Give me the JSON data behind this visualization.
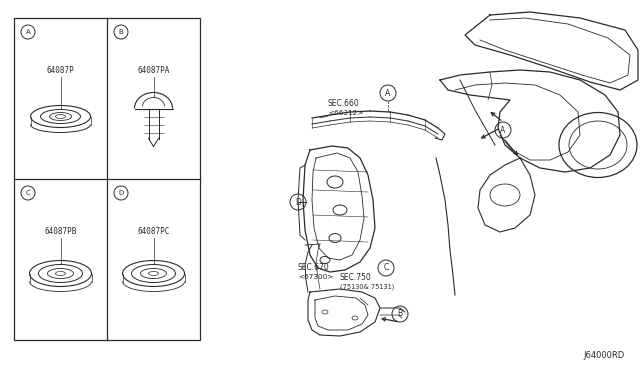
{
  "bg_color": "#ffffff",
  "line_color": "#2a2a2a",
  "text_color": "#2a2a2a",
  "fig_width": 6.4,
  "fig_height": 3.72,
  "dpi": 100,
  "footer_text": "J64000RD",
  "parts": [
    {
      "label": "A",
      "part_no": "64087P",
      "col": 0,
      "row": 0
    },
    {
      "label": "B",
      "part_no": "64087PA",
      "col": 1,
      "row": 0
    },
    {
      "label": "C",
      "part_no": "64087PB",
      "col": 0,
      "row": 1
    },
    {
      "label": "D",
      "part_no": "64087PC",
      "col": 1,
      "row": 1
    }
  ]
}
